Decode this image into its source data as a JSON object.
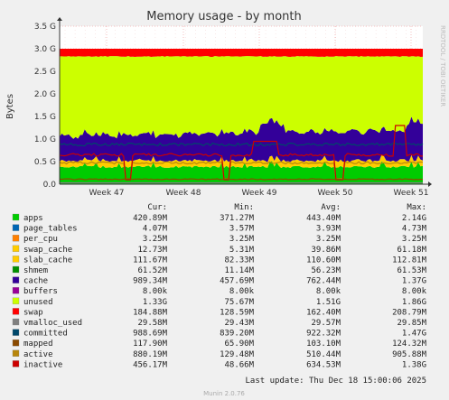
{
  "chart_data": {
    "type": "area",
    "title": "Memory usage - by month",
    "ylabel": "Bytes",
    "side_label": "RRDTOOL / TOBI OETIKER",
    "x_ticks": [
      "Week 47",
      "Week 48",
      "Week 49",
      "Week 50",
      "Week 51"
    ],
    "y_ticks": [
      "0.0",
      "0.5 G",
      "1.0 G",
      "1.5 G",
      "2.0 G",
      "2.5 G",
      "3.0 G",
      "3.5 G"
    ],
    "ylim": [
      0,
      3.5
    ],
    "grid": true,
    "legend_headers": {
      "cur": "Cur:",
      "min": "Min:",
      "avg": "Avg:",
      "max": "Max:"
    },
    "legend": [
      {
        "name": "apps",
        "color": "#00cc00",
        "cur": "420.89M",
        "min": "371.27M",
        "avg": "443.40M",
        "max": "2.14G"
      },
      {
        "name": "page_tables",
        "color": "#0066b3",
        "cur": "4.07M",
        "min": "3.57M",
        "avg": "3.93M",
        "max": "4.73M"
      },
      {
        "name": "per_cpu",
        "color": "#ff8000",
        "cur": "3.25M",
        "min": "3.25M",
        "avg": "3.25M",
        "max": "3.25M"
      },
      {
        "name": "swap_cache",
        "color": "#ffcc00",
        "cur": "12.73M",
        "min": "5.31M",
        "avg": "39.86M",
        "max": "61.18M"
      },
      {
        "name": "slab_cache",
        "color": "#ffcc00",
        "cur": "111.67M",
        "min": "82.33M",
        "avg": "110.60M",
        "max": "112.81M"
      },
      {
        "name": "shmem",
        "color": "#008f00",
        "cur": "61.52M",
        "min": "11.14M",
        "avg": "56.23M",
        "max": "61.53M"
      },
      {
        "name": "cache",
        "color": "#330099",
        "cur": "989.34M",
        "min": "457.69M",
        "avg": "762.44M",
        "max": "1.37G"
      },
      {
        "name": "buffers",
        "color": "#990099",
        "cur": "8.00k",
        "min": "8.00k",
        "avg": "8.00k",
        "max": "8.00k"
      },
      {
        "name": "unused",
        "color": "#ccff00",
        "cur": "1.33G",
        "min": "75.67M",
        "avg": "1.51G",
        "max": "1.86G"
      },
      {
        "name": "swap",
        "color": "#ff0000",
        "cur": "184.88M",
        "min": "128.59M",
        "avg": "162.40M",
        "max": "208.79M"
      },
      {
        "name": "vmalloc_used",
        "color": "#808080",
        "cur": "29.58M",
        "min": "29.43M",
        "avg": "29.57M",
        "max": "29.85M"
      },
      {
        "name": "committed",
        "color": "#00486a",
        "cur": "988.69M",
        "min": "839.20M",
        "avg": "922.32M",
        "max": "1.47G"
      },
      {
        "name": "mapped",
        "color": "#8a4a00",
        "cur": "117.90M",
        "min": "65.90M",
        "avg": "103.10M",
        "max": "124.32M"
      },
      {
        "name": "active",
        "color": "#b8860b",
        "cur": "880.19M",
        "min": "129.48M",
        "avg": "510.44M",
        "max": "905.88M"
      },
      {
        "name": "inactive",
        "color": "#cc0000",
        "cur": "456.17M",
        "min": "48.66M",
        "avg": "634.53M",
        "max": "1.38G"
      }
    ],
    "footer": "Last update: Thu Dec 18 15:00:06 2025",
    "software": "Munin 2.0.76"
  }
}
